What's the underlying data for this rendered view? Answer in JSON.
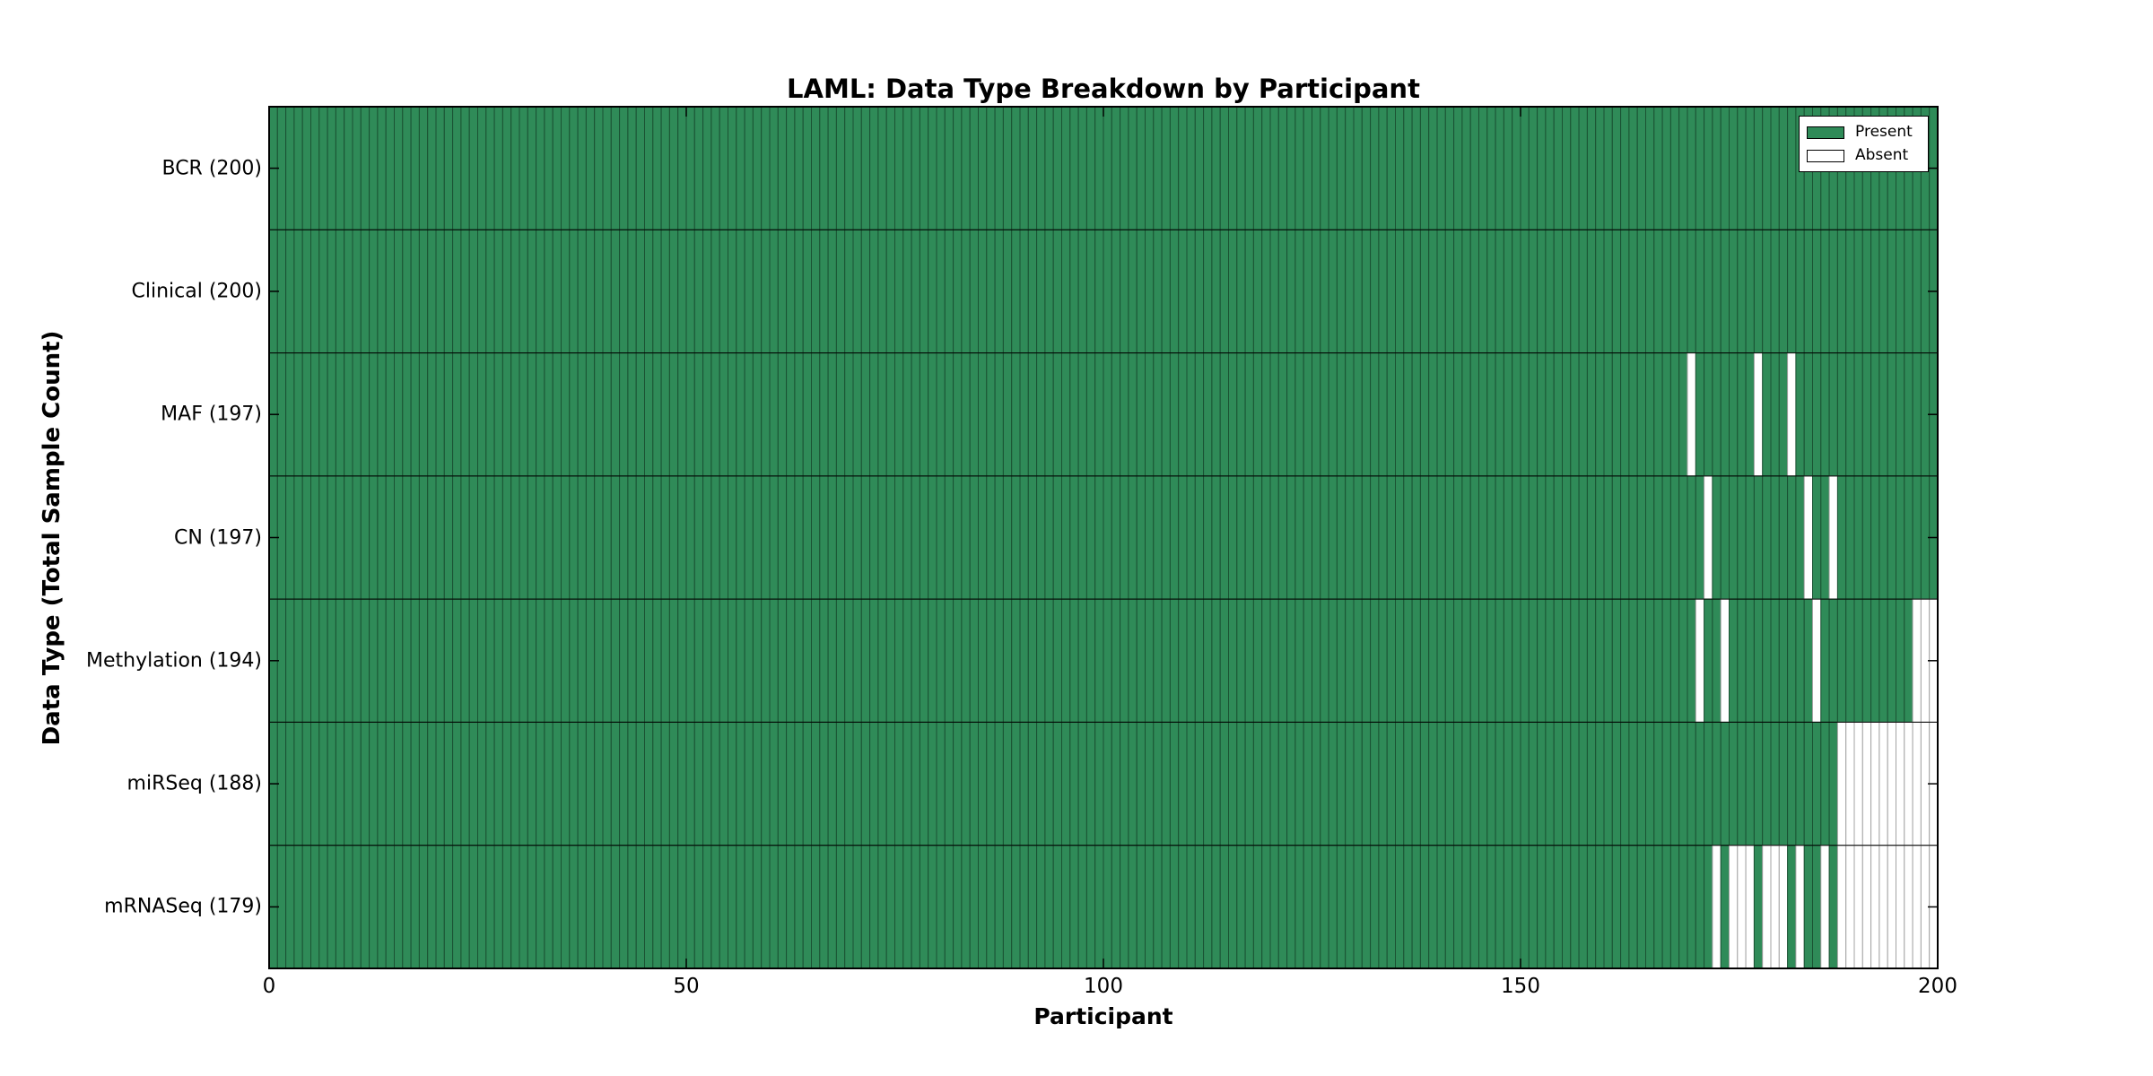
{
  "chart_data": {
    "type": "heatmap",
    "title": "LAML: Data Type Breakdown by Participant",
    "xlabel": "Participant",
    "ylabel": "Data Type (Total Sample Count)",
    "x_range": [
      0,
      200
    ],
    "x_ticks": [
      0,
      50,
      100,
      150,
      200
    ],
    "x_tick_labels": [
      "0",
      "50",
      "100",
      "150",
      "200"
    ],
    "n_participants": 200,
    "grid": "cell borders visible, row separator lines, inward axis ticks",
    "legend": {
      "position": "upper right",
      "entries": [
        {
          "label": "Present",
          "color": "#2f8b58"
        },
        {
          "label": "Absent",
          "color": "#ffffff"
        }
      ]
    },
    "colors": {
      "present": "#2f8b58",
      "present_edge": "#1b5233",
      "absent": "#ffffff",
      "absent_edge": "#a3a3a3",
      "axis": "#000000"
    },
    "rows": [
      {
        "label": "BCR (200)",
        "data_type": "BCR",
        "present_count": 200,
        "absent_participants": []
      },
      {
        "label": "Clinical (200)",
        "data_type": "Clinical",
        "present_count": 200,
        "absent_participants": []
      },
      {
        "label": "MAF (197)",
        "data_type": "MAF",
        "present_count": 197,
        "absent_participants": [
          170,
          178,
          182
        ]
      },
      {
        "label": "CN (197)",
        "data_type": "CN",
        "present_count": 197,
        "absent_participants": [
          172,
          184,
          187
        ]
      },
      {
        "label": "Methylation (194)",
        "data_type": "Methylation",
        "present_count": 194,
        "absent_participants": [
          171,
          174,
          185,
          197,
          198,
          199
        ]
      },
      {
        "label": "miRSeq (188)",
        "data_type": "miRSeq",
        "present_count": 188,
        "absent_participants": [
          188,
          189,
          190,
          191,
          192,
          193,
          194,
          195,
          196,
          197,
          198,
          199
        ]
      },
      {
        "label": "mRNASeq (179)",
        "data_type": "mRNASeq",
        "present_count": 179,
        "absent_participants": [
          173,
          175,
          176,
          177,
          179,
          180,
          181,
          183,
          186,
          188,
          189,
          190,
          191,
          192,
          193,
          194,
          195,
          196,
          197,
          198,
          199
        ]
      }
    ]
  }
}
